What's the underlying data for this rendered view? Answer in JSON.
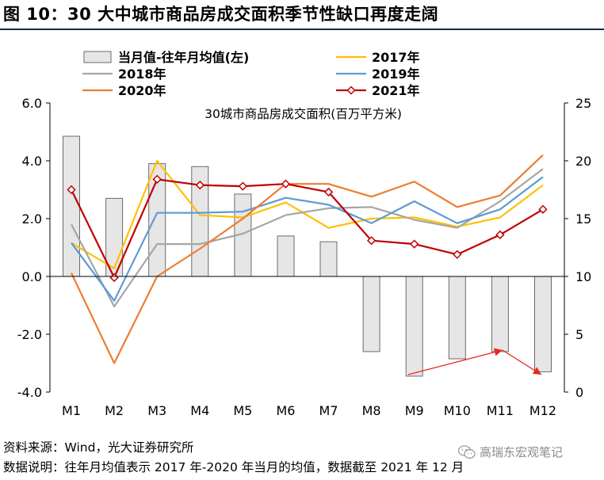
{
  "figure_title": "图 10：30 大中城市商品房成交面积季节性缺口再度走阔",
  "source_note": "资料来源：Wind，光大证券研究所",
  "explain_note": "数据说明：往年月均值表示 2017 年-2020 年当月的均值，数据截至 2021 年 12 月",
  "watermark": "高瑞东宏观笔记",
  "colors": {
    "bar_fill": "#e6e6e6",
    "bar_stroke": "#6b6b6b",
    "s2017": "#ffc000",
    "s2018": "#a6a6a6",
    "s2019": "#5b9bd5",
    "s2020": "#ed7d31",
    "s2021": "#c00000",
    "title_rule": "#1a2a44",
    "annotation_arrow": "#e8281e"
  },
  "chart_data": {
    "type": "bar+line",
    "title": "30城市商品房成交面积(百万平方米)",
    "categories": [
      "M1",
      "M2",
      "M3",
      "M4",
      "M5",
      "M6",
      "M7",
      "M8",
      "M9",
      "M10",
      "M11",
      "M12"
    ],
    "left_axis": {
      "ylim": [
        -4,
        6
      ],
      "ticks": [
        "-4.0",
        "-2.0",
        "0.0",
        "2.0",
        "4.0",
        "6.0"
      ]
    },
    "right_axis": {
      "ylim": [
        0,
        25
      ],
      "ticks": [
        "0",
        "5",
        "10",
        "15",
        "20",
        "25"
      ]
    },
    "bar_series": {
      "name": "当月值-往年月均值(左)",
      "axis": "left",
      "values": [
        4.85,
        2.7,
        3.9,
        3.8,
        2.85,
        1.4,
        1.2,
        -2.6,
        -3.45,
        -2.85,
        -2.6,
        -3.3
      ]
    },
    "line_series": [
      {
        "name": "2017年",
        "key": "s2017",
        "axis": "right",
        "marker": false,
        "values": [
          12.9,
          10.7,
          20.0,
          15.3,
          15.1,
          16.4,
          14.2,
          15.0,
          15.1,
          14.3,
          15.1,
          17.9
        ]
      },
      {
        "name": "2018年",
        "key": "s2018",
        "axis": "right",
        "marker": false,
        "values": [
          14.5,
          7.4,
          12.8,
          12.8,
          13.7,
          15.3,
          15.9,
          16.0,
          14.9,
          14.2,
          16.5,
          19.3
        ]
      },
      {
        "name": "2019年",
        "key": "s2019",
        "axis": "right",
        "marker": false,
        "values": [
          12.9,
          7.9,
          15.5,
          15.5,
          15.6,
          16.8,
          16.2,
          14.6,
          16.5,
          14.6,
          15.8,
          18.6
        ]
      },
      {
        "name": "2020年",
        "key": "s2020",
        "axis": "right",
        "marker": false,
        "values": [
          10.3,
          2.5,
          10.0,
          12.4,
          15.0,
          18.0,
          18.0,
          16.9,
          18.2,
          16.0,
          17.0,
          20.5
        ]
      },
      {
        "name": "2021年",
        "key": "s2021",
        "axis": "right",
        "marker": true,
        "values": [
          17.5,
          9.9,
          18.4,
          17.9,
          17.8,
          18.0,
          17.3,
          13.1,
          12.8,
          11.9,
          13.6,
          15.8
        ]
      }
    ],
    "legend": {
      "placement": "top",
      "columns": 2
    },
    "grid": false
  }
}
